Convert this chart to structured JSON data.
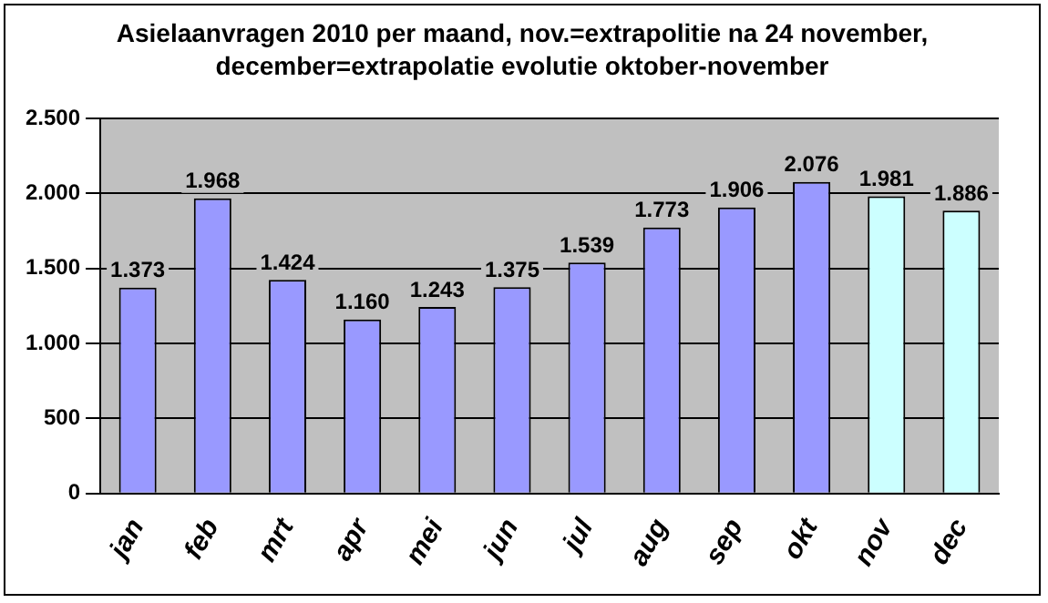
{
  "chart_data": {
    "type": "bar",
    "title": "Asielaanvragen 2010 per maand, nov.=extrapolitie na 24 november, december=extrapolatie evolutie oktober-november",
    "categories": [
      "jan",
      "feb",
      "mrt",
      "apr",
      "mei",
      "jun",
      "jul",
      "aug",
      "sep",
      "okt",
      "nov",
      "dec"
    ],
    "values": [
      1373,
      1968,
      1424,
      1160,
      1243,
      1375,
      1539,
      1773,
      1906,
      2076,
      1981,
      1886
    ],
    "colors": [
      "#9999ff",
      "#9999ff",
      "#9999ff",
      "#9999ff",
      "#9999ff",
      "#9999ff",
      "#9999ff",
      "#9999ff",
      "#9999ff",
      "#9999ff",
      "#ccffff",
      "#ccffff"
    ],
    "value_labels": [
      "1.373",
      "1.968",
      "1.424",
      "1.160",
      "1.243",
      "1.375",
      "1.539",
      "1.773",
      "1.906",
      "2.076",
      "1.981",
      "1.886"
    ],
    "ylim": [
      0,
      2500
    ],
    "yticks": [
      {
        "value": 0,
        "label": "0"
      },
      {
        "value": 500,
        "label": "500"
      },
      {
        "value": 1000,
        "label": "1.000"
      },
      {
        "value": 1500,
        "label": "1.500"
      },
      {
        "value": 2000,
        "label": "2.000"
      },
      {
        "value": 2500,
        "label": "2.500"
      }
    ],
    "grid": "y",
    "legend": false
  }
}
